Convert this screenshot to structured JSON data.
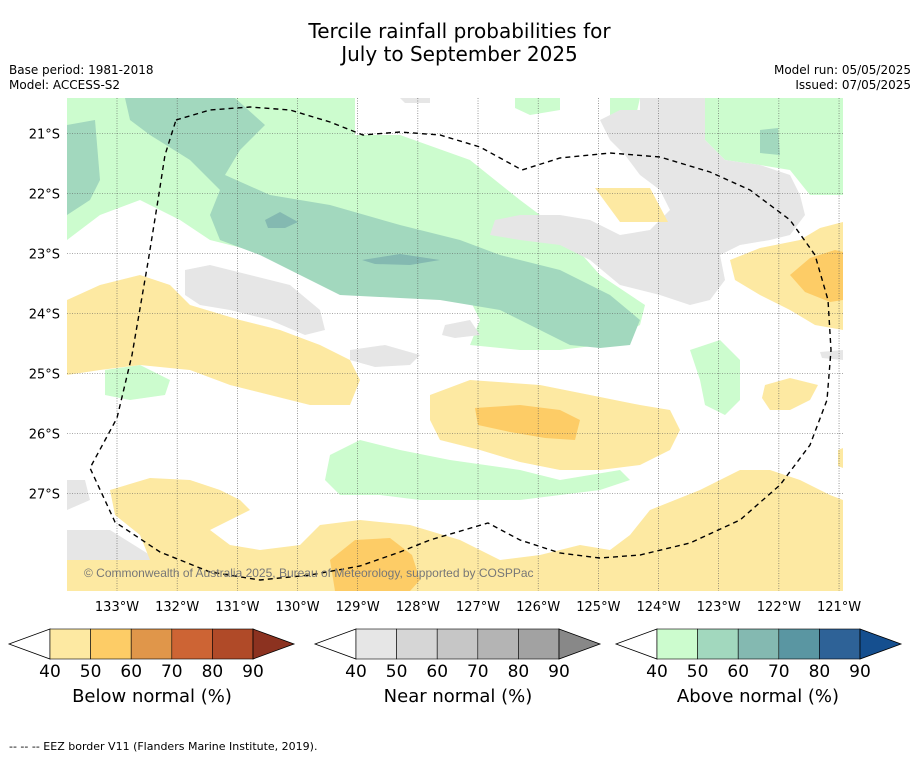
{
  "title": {
    "line1": "Tercile rainfall probabilities for",
    "line2": "July to September 2025"
  },
  "meta": {
    "base_period": "Base period: 1981-2018",
    "model": "Model: ACCESS-S2",
    "model_run": "Model run: 05/05/2025",
    "issued": "Issued: 07/05/2025"
  },
  "copyright": "© Commonwealth of Australia 2025, Bureau of Meteorology, supported by COSPPac",
  "footnote": "--  --  -- EEZ border V11 (Flanders Marine Institute, 2019).",
  "chart_data": {
    "type": "heatmap",
    "x_ticks": [
      "133°W",
      "132°W",
      "131°W",
      "130°W",
      "129°W",
      "128°W",
      "127°W",
      "126°W",
      "125°W",
      "124°W",
      "123°W",
      "122°W",
      "121°W"
    ],
    "y_ticks": [
      "21°S",
      "22°S",
      "23°S",
      "24°S",
      "25°S",
      "26°S",
      "27°S"
    ],
    "xlim": [
      "133.8°W",
      "120.9°W"
    ],
    "ylim": [
      "20.4°S",
      "28.6°S"
    ],
    "grid": true,
    "colorbars": [
      {
        "name": "Below normal (%)",
        "ticks": [
          40,
          50,
          60,
          70,
          80,
          90
        ],
        "colors": [
          "#fde9a2",
          "#fdcc66",
          "#e0964a",
          "#cd6434",
          "#b04a28",
          "#8c3220"
        ]
      },
      {
        "name": "Near normal (%)",
        "ticks": [
          40,
          50,
          60,
          70,
          80,
          90
        ],
        "colors": [
          "#e6e6e6",
          "#d6d6d6",
          "#c6c6c6",
          "#b4b4b4",
          "#a2a2a2",
          "#888888"
        ]
      },
      {
        "name": "Above normal (%)",
        "ticks": [
          40,
          50,
          60,
          70,
          80,
          90
        ],
        "colors": [
          "#ccfcce",
          "#a2d8be",
          "#84b9b1",
          "#5a96a2",
          "#2e6297",
          "#154f8f"
        ]
      }
    ]
  }
}
